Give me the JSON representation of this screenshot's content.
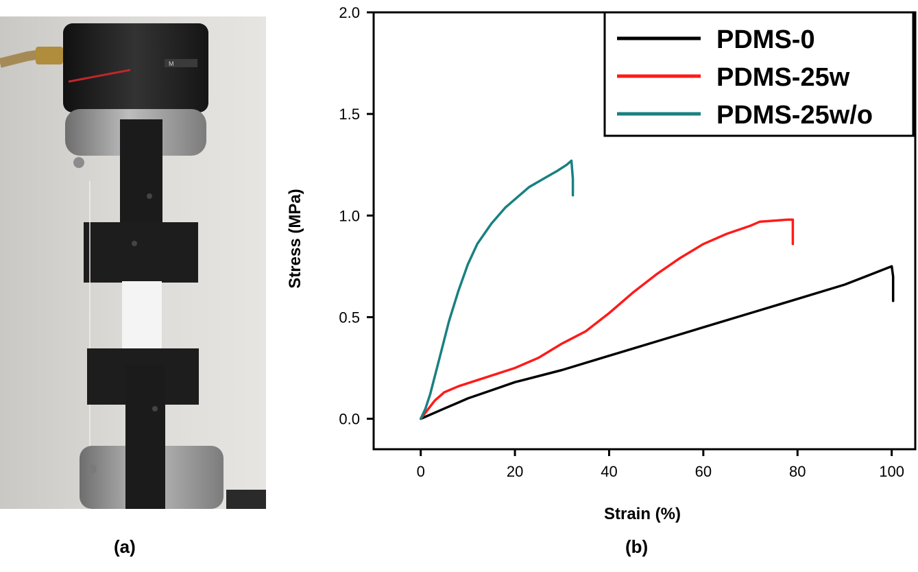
{
  "panel_labels": {
    "a": "(a)",
    "b": "(b)"
  },
  "colors": {
    "pdms_0": "#000000",
    "pdms_25w": "#ff1a1a",
    "pdms_25wo": "#1a8080",
    "photo_background": "#d9d8d4",
    "machine_dark": "#1e1e1e",
    "machine_silver": "#9a9a9a",
    "specimen": "#f2f2f2"
  },
  "photo": {
    "description_icon": "tensile-testing-machine-photo",
    "brand_mark": "M"
  },
  "chart_data": {
    "type": "line",
    "xlabel": "Strain (%)",
    "ylabel": "Stress (MPa)",
    "xlim": [
      -10,
      105
    ],
    "ylim": [
      -0.15,
      2.0
    ],
    "xticks": [
      0,
      20,
      40,
      60,
      80,
      100
    ],
    "yticks": [
      0.0,
      0.5,
      1.0,
      1.5,
      2.0
    ],
    "xtick_labels": [
      "0",
      "20",
      "40",
      "60",
      "80",
      "100"
    ],
    "ytick_labels": [
      "0.0",
      "0.5",
      "1.0",
      "1.5",
      "2.0"
    ],
    "grid": false,
    "legend_position": "top-right",
    "series": [
      {
        "name": "PDMS-0",
        "color": "#000000",
        "x": [
          0,
          1,
          3,
          5,
          8,
          10,
          15,
          20,
          30,
          40,
          50,
          60,
          70,
          80,
          90,
          100,
          100.3,
          100.3
        ],
        "y": [
          0,
          0.01,
          0.03,
          0.05,
          0.08,
          0.1,
          0.14,
          0.18,
          0.24,
          0.31,
          0.38,
          0.45,
          0.52,
          0.59,
          0.66,
          0.75,
          0.7,
          0.58
        ]
      },
      {
        "name": "PDMS-25w",
        "color": "#ff1a1a",
        "x": [
          0,
          1,
          2,
          3,
          5,
          8,
          12,
          16,
          20,
          25,
          30,
          35,
          40,
          45,
          50,
          55,
          60,
          65,
          70,
          72,
          75,
          78,
          79,
          79,
          79
        ],
        "y": [
          0,
          0.03,
          0.06,
          0.09,
          0.13,
          0.16,
          0.19,
          0.22,
          0.25,
          0.3,
          0.37,
          0.43,
          0.52,
          0.62,
          0.71,
          0.79,
          0.86,
          0.91,
          0.95,
          0.97,
          0.975,
          0.98,
          0.98,
          0.92,
          0.86
        ]
      },
      {
        "name": "PDMS-25w/o",
        "color": "#1a8080",
        "x": [
          0,
          1,
          2,
          4,
          6,
          8,
          10,
          12,
          15,
          18,
          20,
          23,
          26,
          29,
          31,
          32,
          32.3,
          32.3
        ],
        "y": [
          0,
          0.05,
          0.12,
          0.3,
          0.48,
          0.63,
          0.76,
          0.86,
          0.96,
          1.04,
          1.08,
          1.14,
          1.18,
          1.22,
          1.25,
          1.27,
          1.18,
          1.1
        ]
      }
    ]
  }
}
